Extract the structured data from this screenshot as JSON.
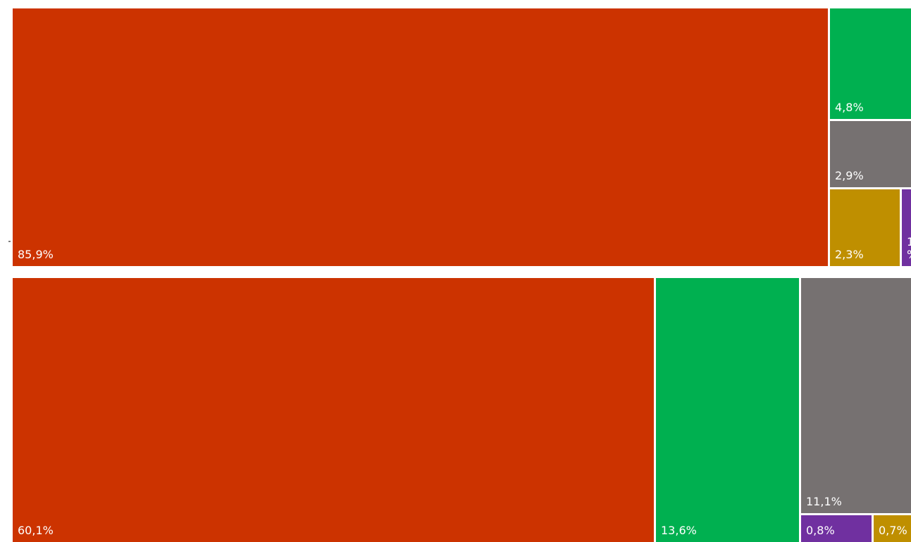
{
  "chart_data": {
    "type": "treemap",
    "colors": {
      "red": "#CC3300",
      "green": "#00B050",
      "gray": "#767171",
      "gold": "#BF8F00",
      "purple": "#7030A0"
    },
    "panels": [
      {
        "tiles": [
          {
            "label": "85,9%",
            "value": 85.9,
            "color": "red"
          },
          {
            "label": "4,8%",
            "value": 4.8,
            "color": "green"
          },
          {
            "label": "2,9%",
            "value": 2.9,
            "color": "gray"
          },
          {
            "label": "2,3%",
            "value": 2.3,
            "color": "gold"
          },
          {
            "label": "1\n%",
            "value": 1,
            "color": "purple"
          }
        ]
      },
      {
        "tiles": [
          {
            "label": "60,1%",
            "value": 60.1,
            "color": "red"
          },
          {
            "label": "13,6%",
            "value": 13.6,
            "color": "green"
          },
          {
            "label": "11,1%",
            "value": 11.1,
            "color": "gray"
          },
          {
            "label": "0,8%",
            "value": 0.8,
            "color": "purple"
          },
          {
            "label": "0,7%",
            "value": 0.7,
            "color": "gold"
          }
        ]
      }
    ]
  }
}
